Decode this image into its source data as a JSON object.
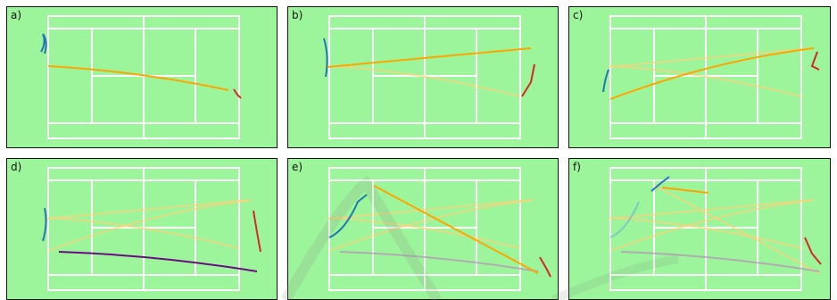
{
  "panels": [
    {
      "label": "a)"
    },
    {
      "label": "b)"
    },
    {
      "label": "c)"
    },
    {
      "label": "d)"
    },
    {
      "label": "e)"
    },
    {
      "label": "f)"
    }
  ],
  "colors": {
    "court_bg": "#9cf59a",
    "court_lines": "#ffffff",
    "ball_shot": "#ffa500",
    "player_near": "#1f77b4",
    "player_far": "#d62728",
    "player_c": "#6a0d83",
    "watermark": "#888888"
  }
}
